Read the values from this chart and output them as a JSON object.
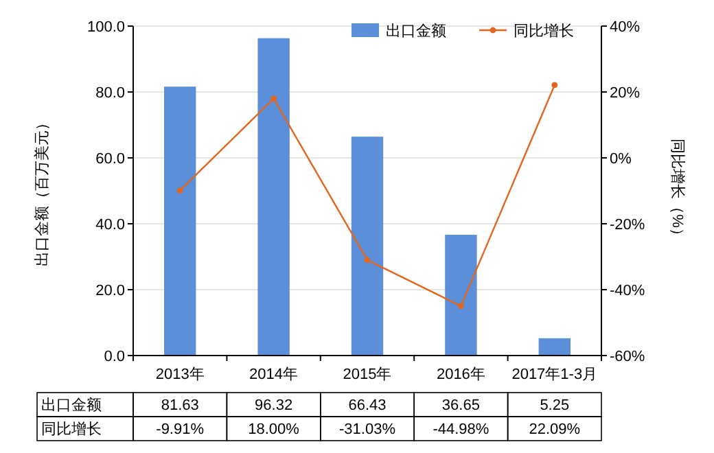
{
  "chart_data": {
    "type": "bar",
    "categories": [
      "2013年",
      "2014年",
      "2015年",
      "2016年",
      "2017年1-3月"
    ],
    "series": [
      {
        "name": "出口金额",
        "color": "#5b8fd9",
        "values": [
          81.63,
          96.32,
          66.43,
          36.65,
          5.25
        ],
        "value_labels": [
          "81.63",
          "96.32",
          "66.43",
          "36.65",
          "5.25"
        ]
      },
      {
        "name": "同比增长",
        "type": "line",
        "axis": "y2",
        "color": "#e2661f",
        "values": [
          -9.91,
          18.0,
          -31.03,
          -44.98,
          22.09
        ],
        "value_labels": [
          "-9.91%",
          "18.00%",
          "-31.03%",
          "-44.98%",
          "22.09%"
        ]
      }
    ],
    "ylabel": "出口金额（百万美元）",
    "y2label": "同比增长（%）",
    "ylim": [
      0,
      100
    ],
    "yticks": [
      {
        "value": 0,
        "label": "0.0"
      },
      {
        "value": 20,
        "label": "20.0"
      },
      {
        "value": 40,
        "label": "40.0"
      },
      {
        "value": 60,
        "label": "60.0"
      },
      {
        "value": 80,
        "label": "80.0"
      },
      {
        "value": 100,
        "label": "100.0"
      }
    ],
    "y2lim": [
      -60,
      40
    ],
    "y2ticks": [
      {
        "value": -60,
        "label": "-60%"
      },
      {
        "value": -40,
        "label": "-40%"
      },
      {
        "value": -20,
        "label": "-20%"
      },
      {
        "value": 0,
        "label": "0%"
      },
      {
        "value": 20,
        "label": "20%"
      },
      {
        "value": 40,
        "label": "40%"
      }
    ],
    "grid": "y",
    "legend": "top right",
    "marker": "circle"
  }
}
